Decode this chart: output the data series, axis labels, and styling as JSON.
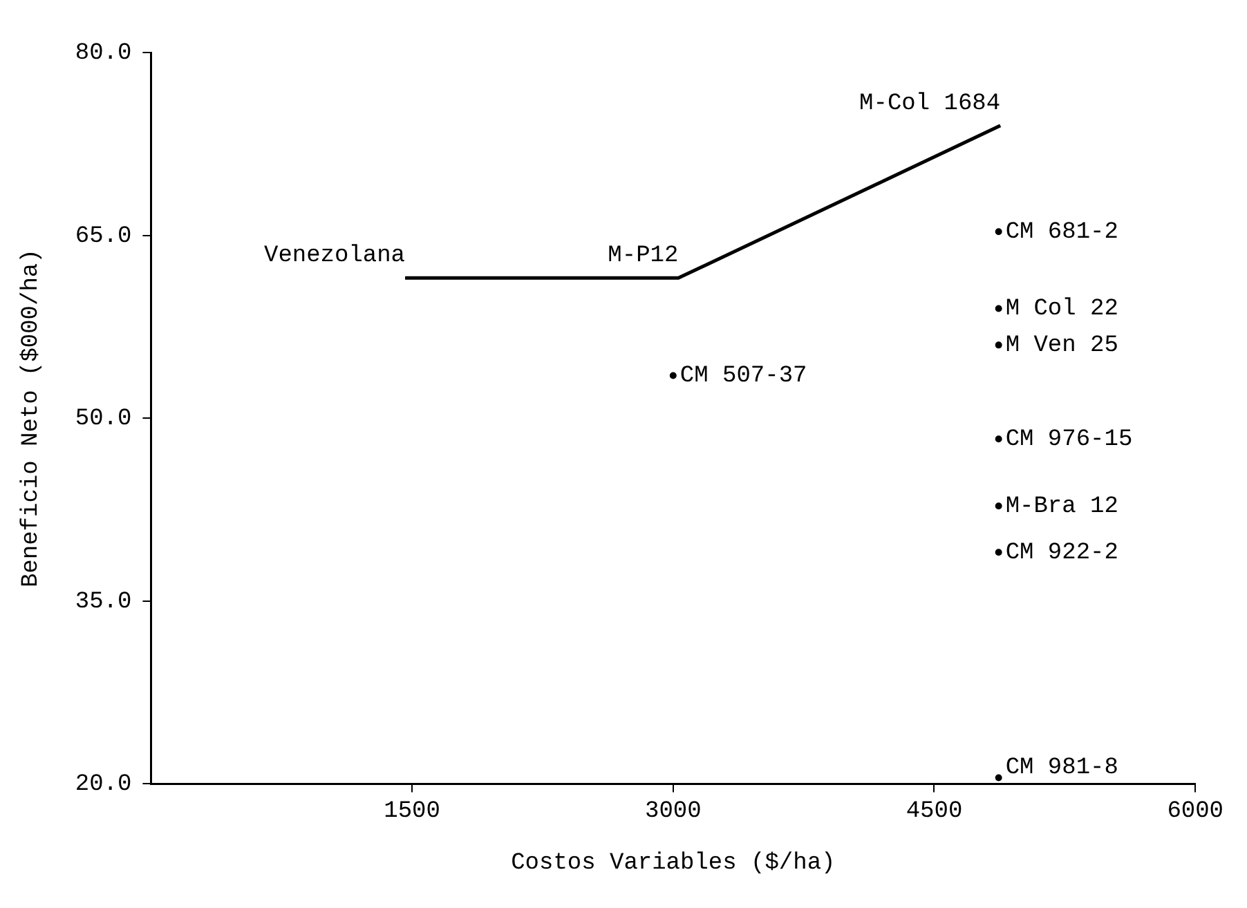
{
  "chart_data": {
    "type": "scatter",
    "xlabel": "Costos Variables ($/ha)",
    "ylabel": "Beneficio Neto ($000/ha)",
    "xlim": [
      0,
      6000
    ],
    "xticks": [
      1500,
      3000,
      4500,
      6000
    ],
    "ylim": [
      20,
      80
    ],
    "yticks": [
      {
        "value": 20,
        "label": "20.0"
      },
      {
        "value": 35,
        "label": "35.0"
      },
      {
        "value": 50,
        "label": "50.0"
      },
      {
        "value": 65,
        "label": "65.0"
      },
      {
        "value": 80,
        "label": "80.0"
      }
    ],
    "grid": false,
    "legend": false,
    "series": [
      {
        "type": "line",
        "color": "#000000",
        "marker": "none",
        "x": [
          1460,
          3030,
          4880
        ],
        "values": [
          61.5,
          61.5,
          74.0
        ]
      },
      {
        "type": "scatter",
        "color": "#000000",
        "marker": "circle",
        "x": [
          4870,
          4870,
          4870,
          4870,
          4870,
          4870,
          4870,
          3000
        ],
        "values": [
          65.3,
          59.0,
          56.0,
          48.3,
          42.8,
          39.0,
          20.5,
          53.5
        ]
      }
    ],
    "annotations": [
      {
        "text": "Venezolana",
        "x": 1460,
        "y": 61.5
      },
      {
        "text": "M-P12",
        "x": 3030,
        "y": 61.5
      },
      {
        "text": "M-Col 1684",
        "x": 4880,
        "y": 74.0
      },
      {
        "text": "CM 681-2",
        "x": 4870,
        "y": 65.3
      },
      {
        "text": "M Col 22",
        "x": 4870,
        "y": 59.0
      },
      {
        "text": "M Ven 25",
        "x": 4870,
        "y": 56.0
      },
      {
        "text": "CM 976-15",
        "x": 4870,
        "y": 48.3
      },
      {
        "text": "M-Bra 12",
        "x": 4870,
        "y": 42.8
      },
      {
        "text": "CM 922-2",
        "x": 4870,
        "y": 39.0
      },
      {
        "text": "CM 981-8",
        "x": 4870,
        "y": 20.5
      },
      {
        "text": "CM 507-37",
        "x": 3000,
        "y": 53.5
      }
    ]
  }
}
